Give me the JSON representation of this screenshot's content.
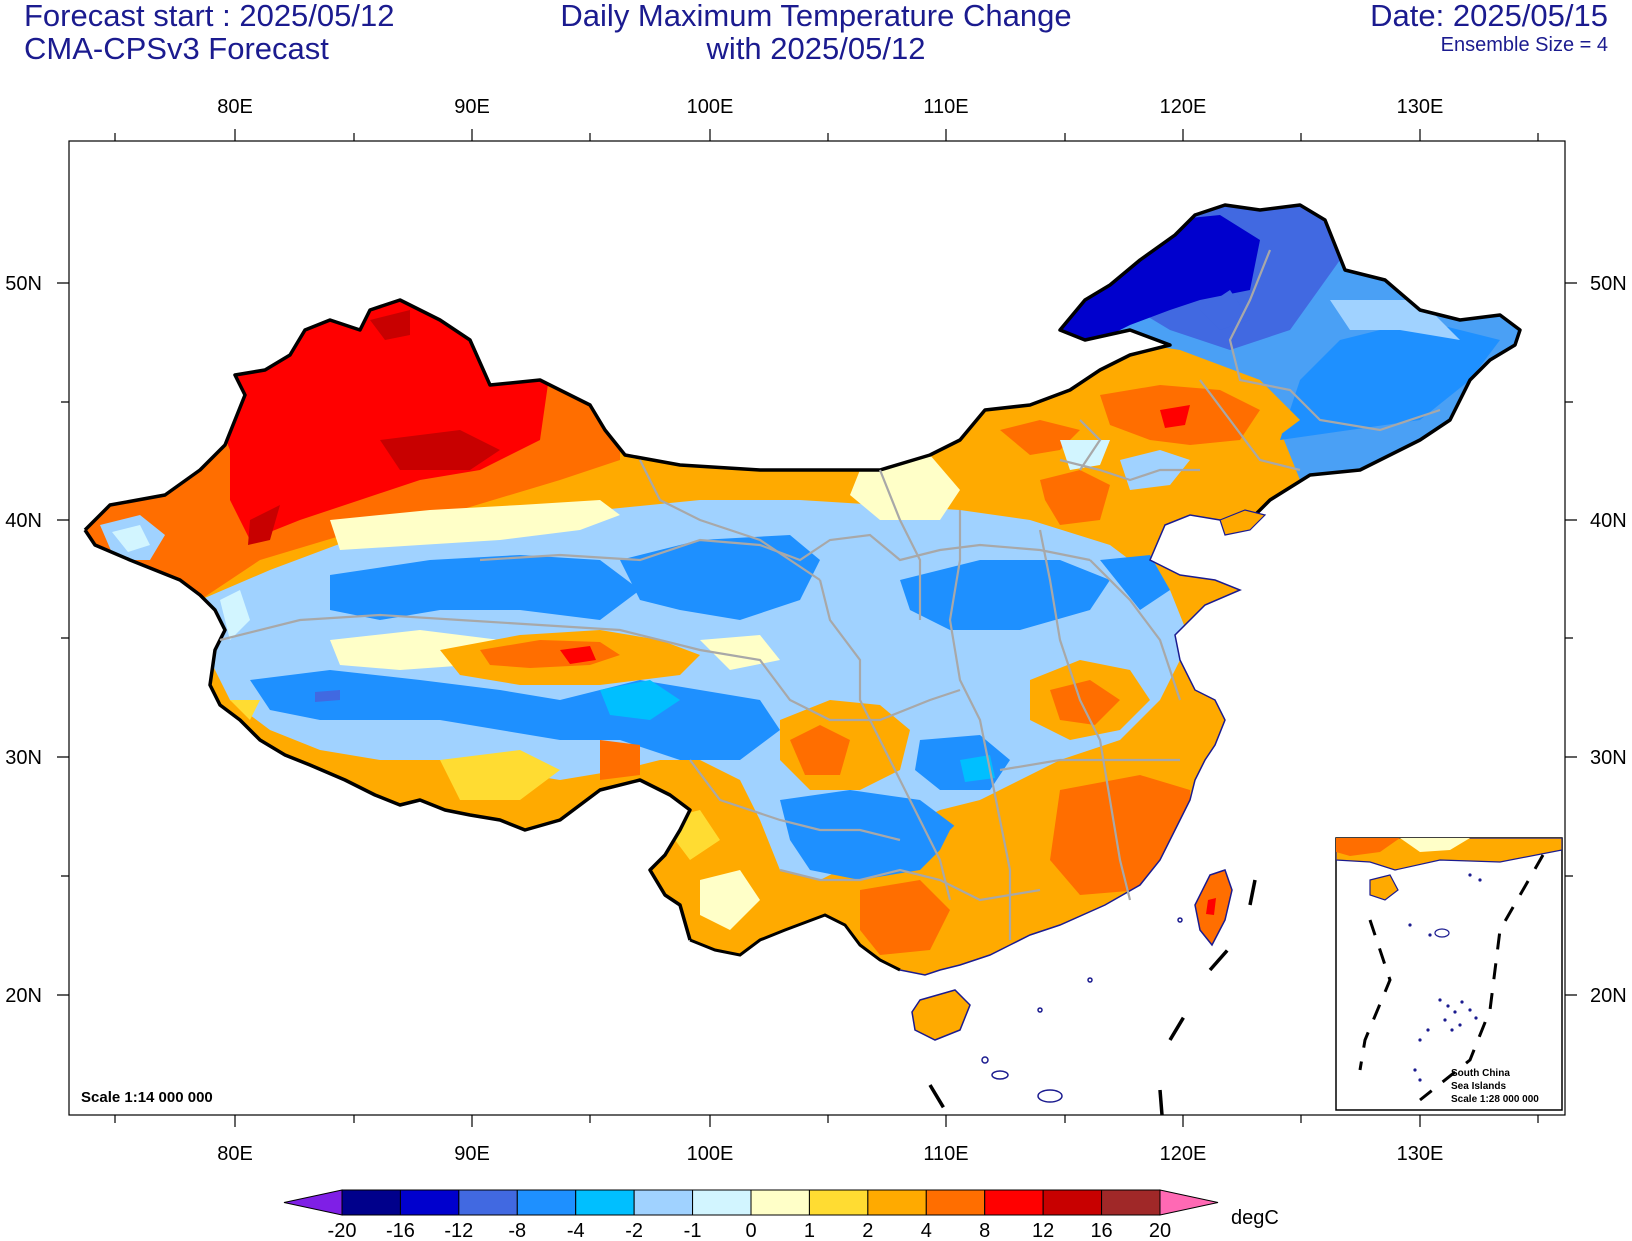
{
  "header": {
    "left_line1": "Forecast start : 2025/05/12",
    "left_line2": "CMA-CPSv3 Forecast",
    "title_line1": "Daily Maximum Temperature Change",
    "title_line2": "with 2025/05/12",
    "right_line1": "Date: 2025/05/15",
    "right_line2": "Ensemble Size = 4"
  },
  "map": {
    "lon_range": [
      73,
      136
    ],
    "lat_range": [
      15,
      56
    ],
    "lon_ticks": [
      "80E",
      "90E",
      "100E",
      "110E",
      "120E",
      "130E"
    ],
    "lat_ticks": [
      "50N",
      "40N",
      "30N",
      "20N"
    ],
    "scale_label": "Scale 1:14 000 000",
    "inset": {
      "line1": "South China",
      "line2": "Sea Islands",
      "line3": "Scale 1:28 000 000"
    }
  },
  "colorbar": {
    "unit": "degC",
    "labels": [
      "-20",
      "-16",
      "-12",
      "-8",
      "-4",
      "-2",
      "-1",
      "0",
      "1",
      "2",
      "4",
      "8",
      "12",
      "16",
      "20"
    ],
    "colors": [
      "#7f1fe6",
      "#00008b",
      "#0000cd",
      "#4169e1",
      "#1e90ff",
      "#00bfff",
      "#a0d2ff",
      "#d2f5ff",
      "#ffffc8",
      "#ffdc32",
      "#ffaa00",
      "#ff6e00",
      "#ff0000",
      "#c80000",
      "#a02828",
      "#ff69b4"
    ]
  }
}
